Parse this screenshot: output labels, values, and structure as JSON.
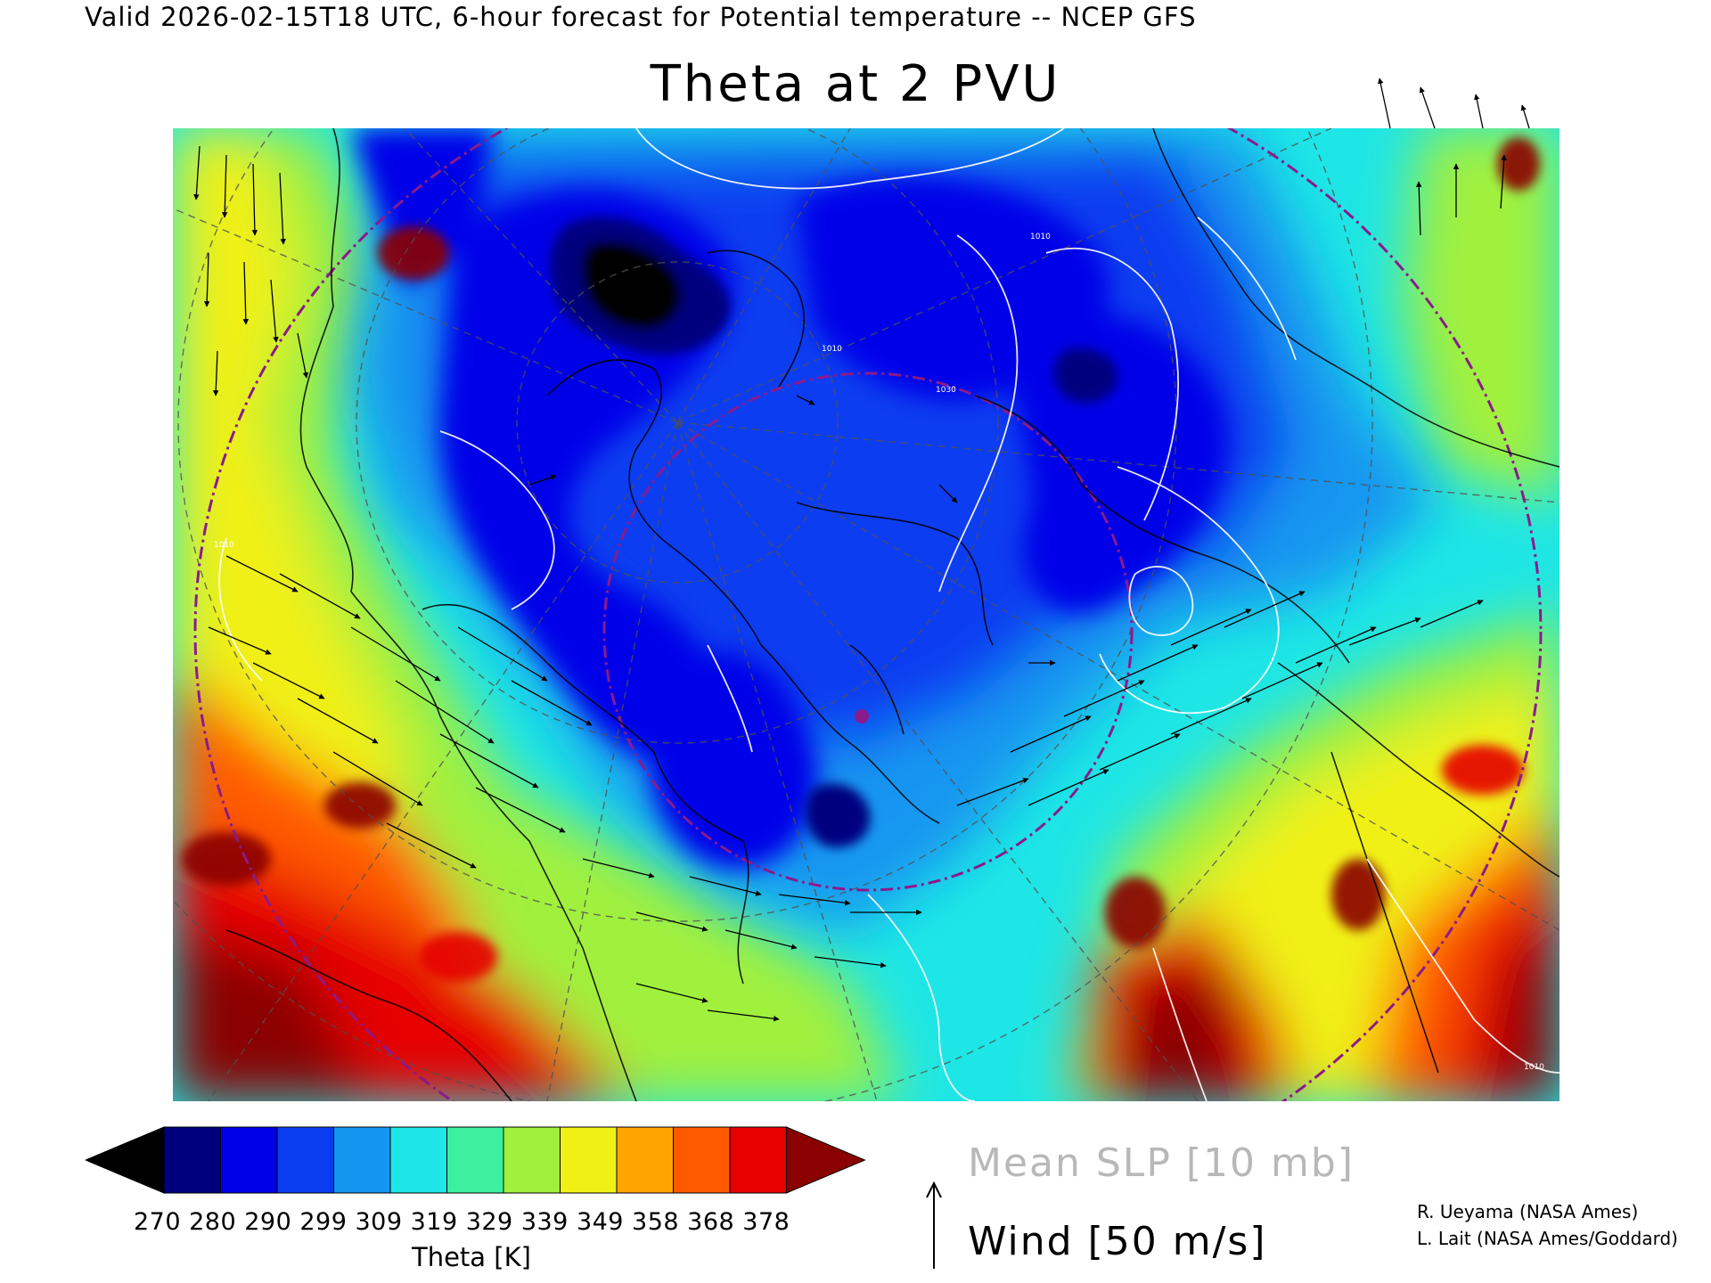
{
  "header": {
    "valid_line": "Valid 2026-02-15T18 UTC, 6-hour forecast for Potential temperature -- NCEP GFS",
    "title": "Theta at 2 PVU"
  },
  "colorbar": {
    "labels": [
      "270",
      "280",
      "290",
      "299",
      "309",
      "319",
      "329",
      "339",
      "349",
      "358",
      "368",
      "378"
    ],
    "labels_text": "270 280 290 299 309 319 329 339 349 358 368 378",
    "title": "Theta [K]",
    "under_color": "#000000",
    "over_color": "#8b0000",
    "colors": [
      "#00007f",
      "#0000e8",
      "#0a3cf0",
      "#1496f0",
      "#1ee6e6",
      "#3cf0a0",
      "#a0f03c",
      "#f0f014",
      "#ffa500",
      "#ff5a00",
      "#e60000"
    ]
  },
  "legend": {
    "slp": "Mean SLP [10 mb]",
    "wind": "Wind [50 m/s]"
  },
  "credits": {
    "line1": "R. Ueyama (NASA Ames)",
    "line2": "L. Lait (NASA Ames/Goddard)"
  },
  "map": {
    "contour_labels": [
      "1010",
      "1010",
      "1030",
      "1010",
      "1010"
    ],
    "colors": {
      "range_ring": "#8b1a8b",
      "coast": "#000000",
      "slp_contour": "#ffffff",
      "grid": "#505050"
    }
  }
}
